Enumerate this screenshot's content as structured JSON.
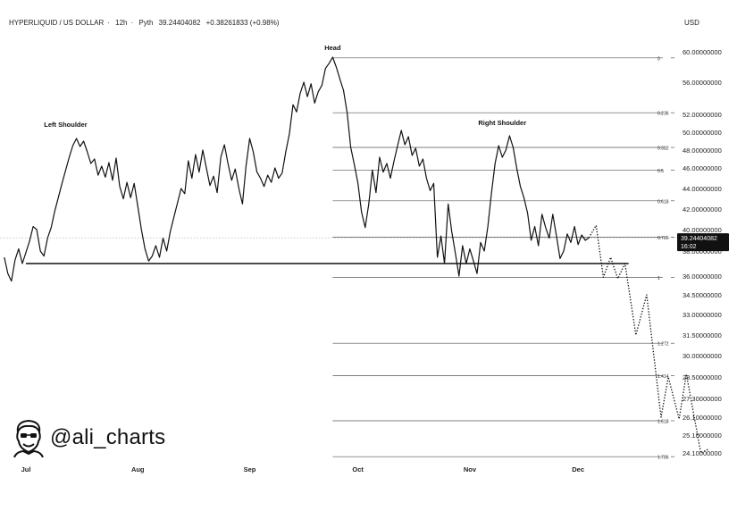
{
  "header": {
    "symbol": "HYPERLIQUID / US DOLLAR",
    "interval": "12h",
    "source": "Pyth",
    "last_price": "39.24404082",
    "change": "+0.38261833 (+0.98%)"
  },
  "currency_label": "USD",
  "price_badge": {
    "price": "39.24404082",
    "countdown": "16:02"
  },
  "watermark": {
    "handle": "@ali_charts"
  },
  "colors": {
    "line": "#111111",
    "grid_line": "#555555",
    "badge_bg": "#111111",
    "axis_text": "#222222"
  },
  "chart_data": {
    "type": "line",
    "title": "",
    "xlabel": "",
    "ylabel": "",
    "x_ticks": [
      "Jul",
      "Aug",
      "Sep",
      "Oct",
      "Nov",
      "Dec"
    ],
    "y_ticks": [
      {
        "label": "60.00000000",
        "value": 60.0
      },
      {
        "label": "56.00000000",
        "value": 56.0
      },
      {
        "label": "52.00000000",
        "value": 52.0
      },
      {
        "label": "50.00000000",
        "value": 50.0
      },
      {
        "label": "48.00000000",
        "value": 48.0
      },
      {
        "label": "46.00000000",
        "value": 46.0
      },
      {
        "label": "44.00000000",
        "value": 44.0
      },
      {
        "label": "42.00000000",
        "value": 42.0
      },
      {
        "label": "40.00000000",
        "value": 40.0
      },
      {
        "label": "38.00000000",
        "value": 38.0
      },
      {
        "label": "36.00000000",
        "value": 36.0
      },
      {
        "label": "34.50000000",
        "value": 34.5
      },
      {
        "label": "33.00000000",
        "value": 33.0
      },
      {
        "label": "31.50000000",
        "value": 31.5
      },
      {
        "label": "30.00000000",
        "value": 30.0
      },
      {
        "label": "28.50000000",
        "value": 28.5
      },
      {
        "label": "27.30000000",
        "value": 27.3
      },
      {
        "label": "26.10000000",
        "value": 26.1
      },
      {
        "label": "25.10000000",
        "value": 25.1
      },
      {
        "label": "24.10000000",
        "value": 24.1
      }
    ],
    "fib_levels": [
      {
        "label": "0",
        "value": 59.2
      },
      {
        "label": "0.236",
        "value": 52.2
      },
      {
        "label": "0.382",
        "value": 48.3
      },
      {
        "label": "0.5",
        "value": 45.8
      },
      {
        "label": "0.618",
        "value": 42.8
      },
      {
        "label": "0.786",
        "value": 39.3
      },
      {
        "label": "1",
        "value": 35.9
      },
      {
        "label": "1.272",
        "value": 30.9
      },
      {
        "label": "1.414",
        "value": 28.6
      },
      {
        "label": "1.618",
        "value": 25.9
      },
      {
        "label": "1.786",
        "value": 23.9
      }
    ],
    "neckline_value": 37.0,
    "current_value": 39.24,
    "annotations": [
      "Left Shoulder",
      "Head",
      "Right Shoulder"
    ],
    "series": [
      {
        "style": "solid",
        "points": [
          [
            "2024-06-25",
            37.5
          ],
          [
            "2024-06-26",
            36.2
          ],
          [
            "2024-06-27",
            35.6
          ],
          [
            "2024-06-28",
            37.3
          ],
          [
            "2024-06-29",
            38.2
          ],
          [
            "2024-06-30",
            37.0
          ],
          [
            "2024-07-02",
            38.9
          ],
          [
            "2024-07-03",
            40.3
          ],
          [
            "2024-07-04",
            40.0
          ],
          [
            "2024-07-05",
            38.0
          ],
          [
            "2024-07-06",
            37.6
          ],
          [
            "2024-07-07",
            39.2
          ],
          [
            "2024-07-08",
            40.2
          ],
          [
            "2024-07-09",
            41.8
          ],
          [
            "2024-07-11",
            44.5
          ],
          [
            "2024-07-13",
            47.2
          ],
          [
            "2024-07-14",
            48.5
          ],
          [
            "2024-07-15",
            49.3
          ],
          [
            "2024-07-16",
            48.4
          ],
          [
            "2024-07-17",
            49.0
          ],
          [
            "2024-07-18",
            47.8
          ],
          [
            "2024-07-19",
            46.5
          ],
          [
            "2024-07-20",
            47.0
          ],
          [
            "2024-07-21",
            45.3
          ],
          [
            "2024-07-22",
            46.2
          ],
          [
            "2024-07-23",
            45.1
          ],
          [
            "2024-07-24",
            46.6
          ],
          [
            "2024-07-25",
            44.8
          ],
          [
            "2024-07-26",
            47.1
          ],
          [
            "2024-07-27",
            44.2
          ],
          [
            "2024-07-28",
            43.0
          ],
          [
            "2024-07-29",
            44.6
          ],
          [
            "2024-07-30",
            43.1
          ],
          [
            "2024-07-31",
            44.5
          ],
          [
            "2024-08-01",
            42.3
          ],
          [
            "2024-08-02",
            40.0
          ],
          [
            "2024-08-03",
            38.2
          ],
          [
            "2024-08-04",
            37.2
          ],
          [
            "2024-08-05",
            37.6
          ],
          [
            "2024-08-06",
            38.5
          ],
          [
            "2024-08-07",
            37.5
          ],
          [
            "2024-08-08",
            39.2
          ],
          [
            "2024-08-09",
            38.0
          ],
          [
            "2024-08-10",
            39.8
          ],
          [
            "2024-08-11",
            41.2
          ],
          [
            "2024-08-12",
            42.6
          ],
          [
            "2024-08-13",
            44.0
          ],
          [
            "2024-08-14",
            43.5
          ],
          [
            "2024-08-15",
            46.8
          ],
          [
            "2024-08-16",
            45.0
          ],
          [
            "2024-08-17",
            47.5
          ],
          [
            "2024-08-18",
            45.6
          ],
          [
            "2024-08-19",
            48.0
          ],
          [
            "2024-08-20",
            46.0
          ],
          [
            "2024-08-21",
            44.3
          ],
          [
            "2024-08-22",
            45.2
          ],
          [
            "2024-08-23",
            43.6
          ],
          [
            "2024-08-24",
            47.2
          ],
          [
            "2024-08-25",
            48.6
          ],
          [
            "2024-08-26",
            46.5
          ],
          [
            "2024-08-27",
            44.8
          ],
          [
            "2024-08-28",
            45.9
          ],
          [
            "2024-08-29",
            44.0
          ],
          [
            "2024-08-30",
            42.5
          ],
          [
            "2024-08-31",
            46.2
          ],
          [
            "2024-09-01",
            49.3
          ],
          [
            "2024-09-02",
            47.8
          ],
          [
            "2024-09-03",
            45.6
          ],
          [
            "2024-09-04",
            45.0
          ],
          [
            "2024-09-05",
            44.2
          ],
          [
            "2024-09-06",
            45.3
          ],
          [
            "2024-09-07",
            44.6
          ],
          [
            "2024-09-08",
            46.0
          ],
          [
            "2024-09-09",
            45.0
          ],
          [
            "2024-09-10",
            45.5
          ],
          [
            "2024-09-11",
            47.8
          ],
          [
            "2024-09-12",
            49.8
          ],
          [
            "2024-09-13",
            53.2
          ],
          [
            "2024-09-14",
            52.3
          ],
          [
            "2024-09-15",
            54.6
          ],
          [
            "2024-09-16",
            56.0
          ],
          [
            "2024-09-17",
            54.2
          ],
          [
            "2024-09-18",
            55.8
          ],
          [
            "2024-09-19",
            53.4
          ],
          [
            "2024-09-20",
            54.8
          ],
          [
            "2024-09-21",
            55.6
          ],
          [
            "2024-09-22",
            57.8
          ],
          [
            "2024-09-23",
            58.5
          ],
          [
            "2024-09-24",
            59.3
          ],
          [
            "2024-09-25",
            58.0
          ],
          [
            "2024-09-26",
            56.4
          ],
          [
            "2024-09-27",
            55.0
          ],
          [
            "2024-09-28",
            52.2
          ],
          [
            "2024-09-29",
            48.3
          ],
          [
            "2024-09-30",
            46.4
          ],
          [
            "2024-10-01",
            44.5
          ],
          [
            "2024-10-02",
            41.7
          ],
          [
            "2024-10-03",
            40.2
          ],
          [
            "2024-10-04",
            42.5
          ],
          [
            "2024-10-05",
            45.8
          ],
          [
            "2024-10-06",
            43.6
          ],
          [
            "2024-10-07",
            47.2
          ],
          [
            "2024-10-08",
            45.6
          ],
          [
            "2024-10-09",
            46.5
          ],
          [
            "2024-10-10",
            45.0
          ],
          [
            "2024-10-11",
            46.8
          ],
          [
            "2024-10-12",
            48.5
          ],
          [
            "2024-10-13",
            50.2
          ],
          [
            "2024-10-14",
            48.6
          ],
          [
            "2024-10-15",
            49.5
          ],
          [
            "2024-10-16",
            47.4
          ],
          [
            "2024-10-17",
            48.2
          ],
          [
            "2024-10-18",
            46.2
          ],
          [
            "2024-10-19",
            47.0
          ],
          [
            "2024-10-20",
            45.0
          ],
          [
            "2024-10-21",
            43.8
          ],
          [
            "2024-10-22",
            44.5
          ],
          [
            "2024-10-23",
            37.5
          ],
          [
            "2024-10-24",
            39.4
          ],
          [
            "2024-10-25",
            37.0
          ],
          [
            "2024-10-26",
            42.5
          ],
          [
            "2024-10-27",
            39.8
          ],
          [
            "2024-10-28",
            37.8
          ],
          [
            "2024-10-29",
            36.0
          ],
          [
            "2024-10-30",
            38.5
          ],
          [
            "2024-10-31",
            37.0
          ],
          [
            "2024-11-01",
            38.2
          ],
          [
            "2024-11-02",
            37.2
          ],
          [
            "2024-11-03",
            36.2
          ],
          [
            "2024-11-04",
            38.8
          ],
          [
            "2024-11-05",
            38.0
          ],
          [
            "2024-11-06",
            40.3
          ],
          [
            "2024-11-07",
            43.6
          ],
          [
            "2024-11-08",
            46.5
          ],
          [
            "2024-11-09",
            48.5
          ],
          [
            "2024-11-10",
            47.2
          ],
          [
            "2024-11-11",
            48.0
          ],
          [
            "2024-11-12",
            49.6
          ],
          [
            "2024-11-13",
            48.3
          ],
          [
            "2024-11-14",
            46.0
          ],
          [
            "2024-11-15",
            44.2
          ],
          [
            "2024-11-16",
            43.1
          ],
          [
            "2024-11-17",
            41.6
          ],
          [
            "2024-11-18",
            39.0
          ],
          [
            "2024-11-19",
            40.3
          ],
          [
            "2024-11-20",
            38.5
          ],
          [
            "2024-11-21",
            41.5
          ],
          [
            "2024-11-22",
            40.2
          ],
          [
            "2024-11-23",
            39.2
          ],
          [
            "2024-11-24",
            41.5
          ],
          [
            "2024-11-25",
            39.4
          ],
          [
            "2024-11-26",
            37.4
          ],
          [
            "2024-11-27",
            38.0
          ],
          [
            "2024-11-28",
            39.6
          ],
          [
            "2024-11-29",
            38.8
          ],
          [
            "2024-11-30",
            40.3
          ],
          [
            "2024-12-01",
            38.6
          ],
          [
            "2024-12-02",
            39.5
          ],
          [
            "2024-12-03",
            39.0
          ],
          [
            "2024-12-04",
            39.24
          ]
        ]
      },
      {
        "style": "dotted",
        "points": [
          [
            "2024-12-04",
            39.24
          ],
          [
            "2024-12-06",
            40.4
          ],
          [
            "2024-12-08",
            35.9
          ],
          [
            "2024-12-10",
            37.5
          ],
          [
            "2024-12-12",
            35.8
          ],
          [
            "2024-12-14",
            37.0
          ],
          [
            "2024-12-17",
            31.5
          ],
          [
            "2024-12-20",
            34.5
          ],
          [
            "2024-12-24",
            26.1
          ],
          [
            "2024-12-26",
            28.5
          ],
          [
            "2024-12-29",
            26.0
          ],
          [
            "2024-12-31",
            28.7
          ],
          [
            "2025-01-04",
            24.1
          ],
          [
            "2025-01-06",
            24.3
          ]
        ]
      }
    ]
  }
}
